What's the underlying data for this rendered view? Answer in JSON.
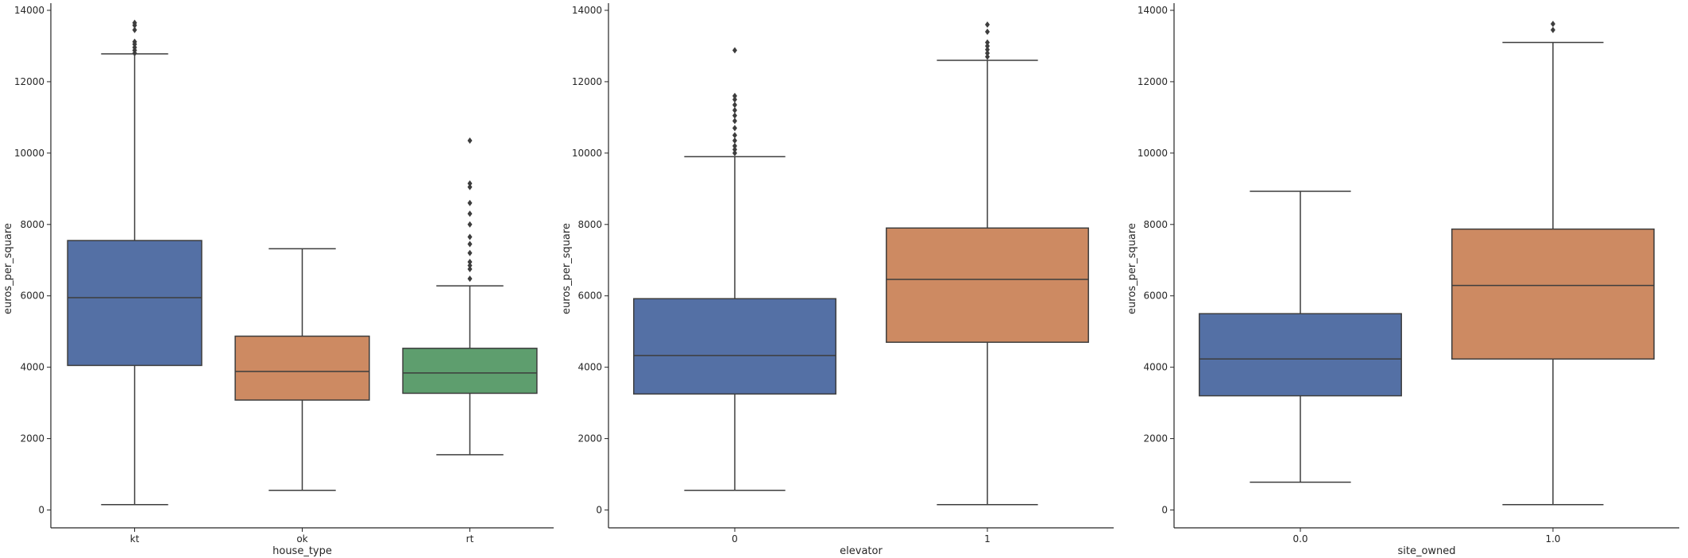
{
  "chart_data": [
    {
      "type": "box",
      "xlabel": "house_type",
      "ylabel": "euros_per_square",
      "ylim": [
        -500,
        14200
      ],
      "yticks": [
        0,
        2000,
        4000,
        6000,
        8000,
        10000,
        12000,
        14000
      ],
      "grid": false,
      "categories": [
        "kt",
        "ok",
        "rt"
      ],
      "boxes": [
        {
          "category": "kt",
          "color": "#5470a5",
          "q1": 4050,
          "median": 5950,
          "q3": 7550,
          "whisker_low": 150,
          "whisker_high": 12780,
          "outliers": [
            12800,
            12880,
            12960,
            13050,
            13120,
            13450,
            13580,
            13650
          ]
        },
        {
          "category": "ok",
          "color": "#cd8a62",
          "q1": 3080,
          "median": 3880,
          "q3": 4870,
          "whisker_low": 550,
          "whisker_high": 7320,
          "outliers": []
        },
        {
          "category": "rt",
          "color": "#5e9e6e",
          "q1": 3270,
          "median": 3840,
          "q3": 4530,
          "whisker_low": 1550,
          "whisker_high": 6280,
          "outliers": [
            6480,
            6750,
            6850,
            6950,
            7200,
            7450,
            7650,
            8000,
            8300,
            8600,
            9050,
            9150,
            10350
          ]
        }
      ]
    },
    {
      "type": "box",
      "xlabel": "elevator",
      "ylabel": "euros_per_square",
      "ylim": [
        -500,
        14200
      ],
      "yticks": [
        0,
        2000,
        4000,
        6000,
        8000,
        10000,
        12000,
        14000
      ],
      "grid": false,
      "categories": [
        "0",
        "1"
      ],
      "boxes": [
        {
          "category": "0",
          "color": "#5470a5",
          "q1": 3250,
          "median": 4330,
          "q3": 5920,
          "whisker_low": 550,
          "whisker_high": 9900,
          "outliers": [
            10000,
            10100,
            10200,
            10350,
            10500,
            10700,
            10900,
            11050,
            11200,
            11350,
            11500,
            11600,
            12880
          ]
        },
        {
          "category": "1",
          "color": "#cd8a62",
          "q1": 4700,
          "median": 6460,
          "q3": 7900,
          "whisker_low": 150,
          "whisker_high": 12600,
          "outliers": [
            12700,
            12800,
            12900,
            13000,
            13100,
            13400,
            13600
          ]
        }
      ]
    },
    {
      "type": "box",
      "xlabel": "site_owned",
      "ylabel": "euros_per_square",
      "ylim": [
        -500,
        14200
      ],
      "yticks": [
        0,
        2000,
        4000,
        6000,
        8000,
        10000,
        12000,
        14000
      ],
      "grid": false,
      "categories": [
        "0.0",
        "1.0"
      ],
      "boxes": [
        {
          "category": "0.0",
          "color": "#5470a5",
          "q1": 3200,
          "median": 4230,
          "q3": 5500,
          "whisker_low": 780,
          "whisker_high": 8930,
          "outliers": []
        },
        {
          "category": "1.0",
          "color": "#cd8a62",
          "q1": 4230,
          "median": 6290,
          "q3": 7870,
          "whisker_low": 150,
          "whisker_high": 13100,
          "outliers": [
            13450,
            13620
          ]
        }
      ]
    }
  ]
}
